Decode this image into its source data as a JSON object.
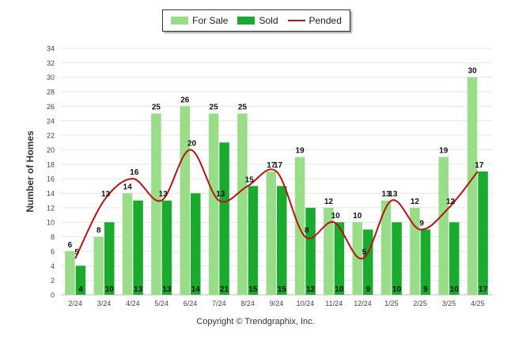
{
  "legend": {
    "for_sale_label": "For Sale",
    "sold_label": "Sold",
    "pended_label": "Pended"
  },
  "footer": {
    "copyright": "Copyright © Trendgraphix, Inc."
  },
  "colors": {
    "for_sale": "#99dd88",
    "sold": "#1aaa2e",
    "pended": "#bb1111"
  },
  "chart_data": {
    "type": "bar",
    "categories": [
      "2/24",
      "3/24",
      "4/24",
      "5/24",
      "6/24",
      "7/24",
      "8/24",
      "9/24",
      "10/24",
      "11/24",
      "12/24",
      "1/25",
      "2/25",
      "3/25",
      "4/25"
    ],
    "series": [
      {
        "name": "For Sale",
        "type": "bar",
        "values": [
          6,
          8,
          14,
          25,
          26,
          25,
          25,
          17,
          19,
          12,
          10,
          13,
          12,
          19,
          30
        ]
      },
      {
        "name": "Sold",
        "type": "bar",
        "values": [
          4,
          10,
          13,
          13,
          14,
          21,
          15,
          15,
          12,
          10,
          9,
          10,
          9,
          10,
          17
        ]
      },
      {
        "name": "Pended",
        "type": "line",
        "smooth": true,
        "values": [
          5,
          13,
          16,
          13,
          20,
          13,
          15,
          17,
          8,
          10,
          5,
          13,
          9,
          12,
          17
        ]
      }
    ],
    "ylabel": "Number of Homes",
    "xlabel": "",
    "ylim": [
      0,
      34
    ],
    "yticks": [
      0,
      2,
      4,
      6,
      8,
      10,
      12,
      14,
      16,
      18,
      20,
      22,
      24,
      26,
      28,
      30,
      32,
      34
    ],
    "grid": true,
    "legend_position": "top-center"
  }
}
